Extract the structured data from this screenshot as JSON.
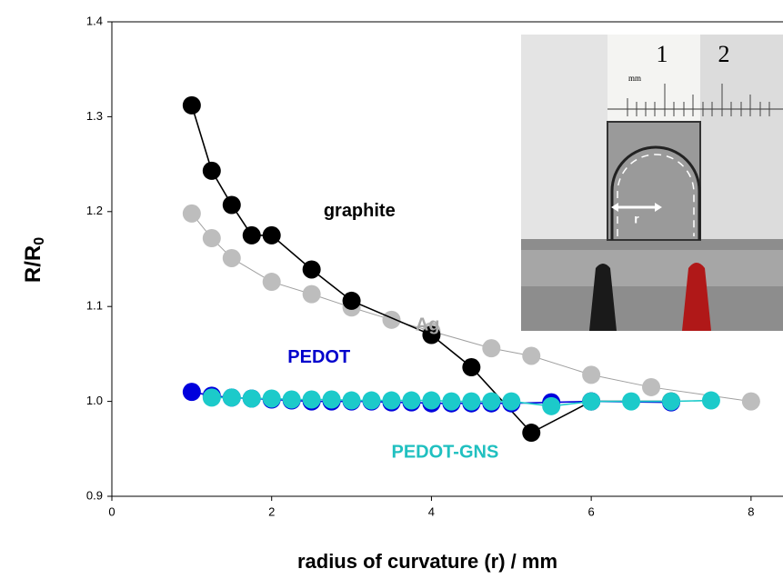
{
  "chart_data": {
    "type": "line",
    "xlabel": "radius of curvature (r) / mm",
    "ylabel": "R/R",
    "ylabel_subscript": "0",
    "xlim": [
      0,
      8.4
    ],
    "ylim": [
      0.9,
      1.4
    ],
    "xticks": [
      0,
      2,
      4,
      6,
      8
    ],
    "yticks": [
      0.9,
      {
        "value": 1,
        "label": "1.0"
      },
      1.1,
      1.2,
      1.3,
      1.4
    ],
    "series": [
      {
        "name": "Ag",
        "color": "#bdbdbd",
        "line_color": "#a0a0a0",
        "x": [
          1,
          1.25,
          1.5,
          2,
          2.5,
          3,
          3.5,
          4,
          4.75,
          5.25,
          6,
          6.75,
          8
        ],
        "values": [
          1.198,
          1.172,
          1.151,
          1.126,
          1.113,
          1.099,
          1.086,
          1.074,
          1.056,
          1.048,
          1.028,
          1.015,
          1.0
        ]
      },
      {
        "name": "graphite",
        "color": "#000000",
        "line_color": "#000000",
        "x": [
          1,
          1.25,
          1.5,
          1.75,
          2,
          2.5,
          3,
          4,
          4.5,
          5.25,
          6,
          7
        ],
        "values": [
          1.312,
          1.243,
          1.207,
          1.175,
          1.175,
          1.139,
          1.106,
          1.07,
          1.036,
          0.967,
          1.0,
          1.0
        ]
      },
      {
        "name": "PEDOT",
        "color": "#0000dd",
        "line_color": "#0000dd",
        "x": [
          1,
          1.25,
          1.5,
          1.75,
          2,
          2.25,
          2.5,
          2.75,
          3,
          3.25,
          3.5,
          3.75,
          4,
          4.25,
          4.5,
          4.75,
          5,
          5.5,
          6,
          7
        ],
        "values": [
          1.01,
          1.006,
          1.004,
          1.003,
          1.002,
          1.001,
          1.0,
          1.0,
          1.0,
          1.0,
          0.999,
          0.999,
          0.998,
          0.998,
          0.998,
          0.998,
          0.998,
          0.999,
          1.0,
          0.999
        ]
      },
      {
        "name": "PEDOT-GNS",
        "color": "#1ccaca",
        "line_color": "#1ccaca",
        "x": [
          1.25,
          1.5,
          1.75,
          2,
          2.25,
          2.5,
          2.75,
          3,
          3.25,
          3.5,
          3.75,
          4,
          4.25,
          4.5,
          4.75,
          5,
          5.5,
          6,
          6.5,
          7,
          7.5
        ],
        "values": [
          1.004,
          1.004,
          1.003,
          1.003,
          1.002,
          1.002,
          1.002,
          1.001,
          1.001,
          1.001,
          1.001,
          1.001,
          1.0,
          1.0,
          1.0,
          1.0,
          0.995,
          1.0,
          1.0,
          1.0,
          1.001
        ]
      }
    ],
    "annotations": [
      {
        "text": "graphite",
        "x": 2.65,
        "y": 1.2,
        "color": "#000000"
      },
      {
        "text": "Ag",
        "x": 3.8,
        "y": 1.08,
        "color": "#a8a8a8"
      },
      {
        "text": "PEDOT",
        "x": 2.2,
        "y": 1.046,
        "color": "#0000cc"
      },
      {
        "text": "PEDOT-GNS",
        "x": 3.5,
        "y": 0.946,
        "color": "#20c0c0"
      }
    ],
    "inset_labels": [
      "mm",
      "1",
      "2",
      "r"
    ]
  }
}
